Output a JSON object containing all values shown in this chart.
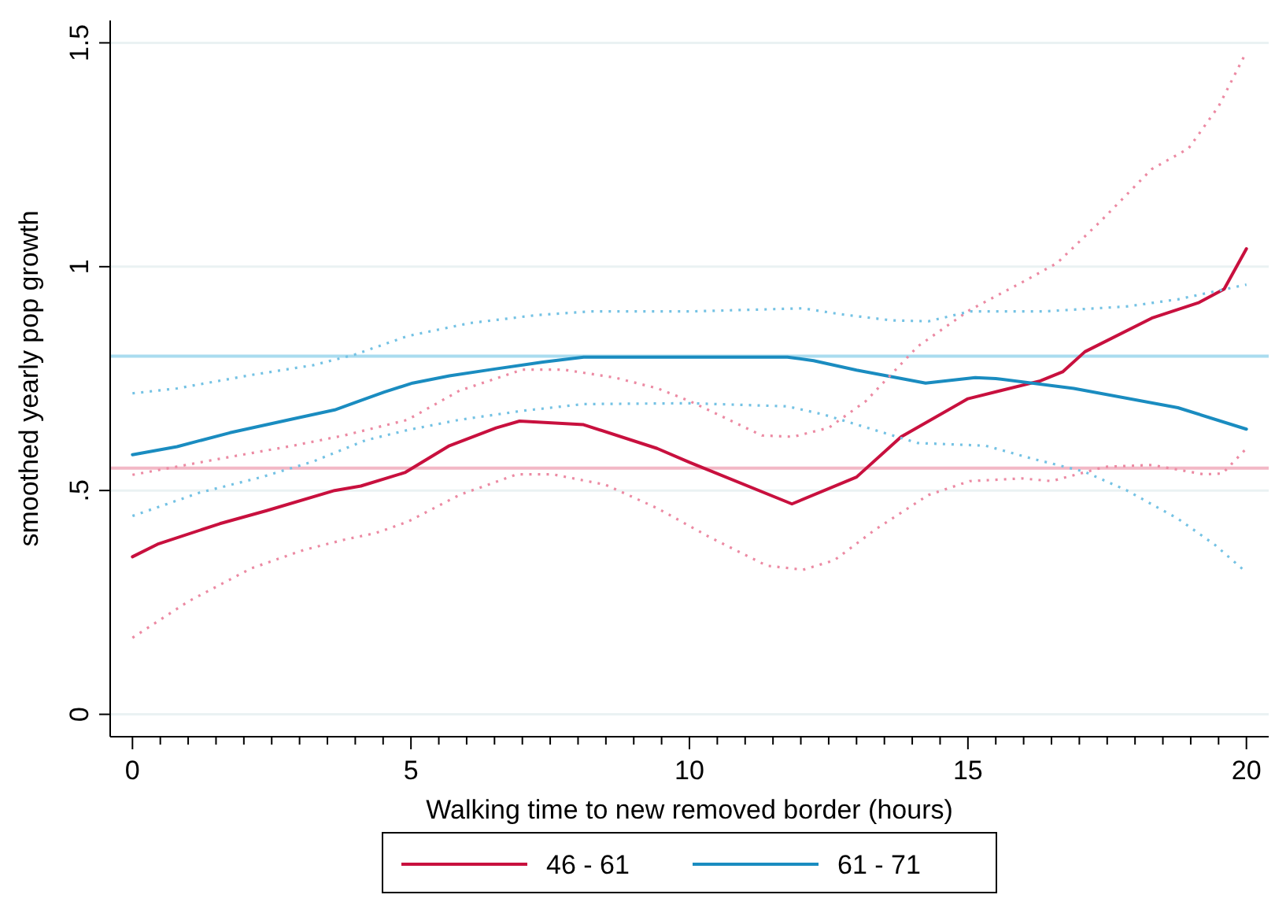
{
  "chart_data": {
    "type": "line",
    "xlabel": "Walking time to new removed border (hours)",
    "ylabel": "smoothed yearly pop growth",
    "xlim": [
      -0.4,
      20.4
    ],
    "ylim": [
      -0.05,
      1.55
    ],
    "xticks": [
      0,
      {
        "value": 0.5,
        "label": null
      },
      {
        "value": 1,
        "label": null
      },
      {
        "value": 1.5,
        "label": null
      },
      {
        "value": 2,
        "label": null
      },
      {
        "value": 2.5,
        "label": null
      },
      {
        "value": 3,
        "label": null
      },
      {
        "value": 3.5,
        "label": null
      },
      {
        "value": 4,
        "label": null
      },
      {
        "value": 4.5,
        "label": null
      },
      5,
      {
        "value": 5.5,
        "label": null
      },
      {
        "value": 6,
        "label": null
      },
      {
        "value": 6.5,
        "label": null
      },
      {
        "value": 7,
        "label": null
      },
      {
        "value": 7.5,
        "label": null
      },
      {
        "value": 8,
        "label": null
      },
      {
        "value": 8.5,
        "label": null
      },
      {
        "value": 9,
        "label": null
      },
      {
        "value": 9.5,
        "label": null
      },
      10,
      {
        "value": 10.5,
        "label": null
      },
      {
        "value": 11,
        "label": null
      },
      {
        "value": 11.5,
        "label": null
      },
      {
        "value": 12,
        "label": null
      },
      {
        "value": 12.5,
        "label": null
      },
      {
        "value": 13,
        "label": null
      },
      {
        "value": 13.5,
        "label": null
      },
      {
        "value": 14,
        "label": null
      },
      {
        "value": 14.5,
        "label": null
      },
      15,
      {
        "value": 15.5,
        "label": null
      },
      {
        "value": 16,
        "label": null
      },
      {
        "value": 16.5,
        "label": null
      },
      {
        "value": 17,
        "label": null
      },
      {
        "value": 17.5,
        "label": null
      },
      {
        "value": 18,
        "label": null
      },
      {
        "value": 18.5,
        "label": null
      },
      {
        "value": 19,
        "label": null
      },
      {
        "value": 19.5,
        "label": null
      },
      20
    ],
    "yticks": [
      0,
      {
        "value": 0.5,
        "label": ".5"
      },
      1,
      1.5
    ],
    "grid": "y",
    "legend": "bottom",
    "ref_lines": [
      {
        "axis": "y",
        "value": 0.8,
        "color": "#a9dcef"
      },
      {
        "axis": "y",
        "value": 0.55,
        "color": "#f2b8c6"
      }
    ],
    "series": [
      {
        "name": "46 - 61",
        "color": "#c8103e",
        "line_style": "solid",
        "x": [
          0,
          0.45,
          1.57,
          2.41,
          3.63,
          4.1,
          4.89,
          5.69,
          6.53,
          6.95,
          8.1,
          9.42,
          10,
          11.84,
          13,
          13.8,
          15,
          16.3,
          16.7,
          17.1,
          18.3,
          19.15,
          19.6,
          20
        ],
        "values": [
          0.352,
          0.38,
          0.426,
          0.455,
          0.5,
          0.51,
          0.54,
          0.6,
          0.64,
          0.655,
          0.647,
          0.594,
          0.563,
          0.47,
          0.53,
          0.62,
          0.705,
          0.745,
          0.765,
          0.81,
          0.885,
          0.92,
          0.95,
          1.04
        ]
      },
      {
        "name": "61 - 71",
        "color": "#1a8cc0",
        "line_style": "solid",
        "x": [
          0,
          0.8,
          1.75,
          2.88,
          3.63,
          4.52,
          5.03,
          5.69,
          6.43,
          7.37,
          8.1,
          10,
          11.76,
          12.23,
          13,
          14.24,
          15.13,
          15.5,
          16.9,
          18.77,
          20
        ],
        "values": [
          0.58,
          0.598,
          0.629,
          0.66,
          0.68,
          0.72,
          0.74,
          0.756,
          0.77,
          0.787,
          0.798,
          0.798,
          0.798,
          0.79,
          0.769,
          0.74,
          0.752,
          0.75,
          0.728,
          0.685,
          0.637
        ]
      },
      {
        "color": "#ec8aa3",
        "line_style": "dotted",
        "x": [
          0,
          1.57,
          2.88,
          3.8,
          4.94,
          5.87,
          7,
          7.74,
          8.67,
          9.43,
          10,
          11.3,
          11.86,
          12.5,
          13.17,
          14.1,
          15.03,
          16,
          16.6,
          17.37,
          18.3,
          18.96,
          19.5,
          20
        ],
        "values": [
          0.535,
          0.571,
          0.6,
          0.623,
          0.658,
          0.723,
          0.77,
          0.77,
          0.752,
          0.728,
          0.7,
          0.623,
          0.62,
          0.64,
          0.7,
          0.822,
          0.903,
          0.967,
          1.008,
          1.1,
          1.218,
          1.264,
          1.358,
          1.48
        ]
      },
      {
        "color": "#ec8aa3",
        "line_style": "dotted",
        "x": [
          0,
          1,
          2.13,
          3.07,
          3.8,
          4.37,
          4.94,
          5.87,
          6.9,
          7.55,
          8.49,
          9.43,
          10.36,
          11.39,
          12.04,
          12.6,
          13.35,
          14.29,
          15.03,
          15.97,
          16.5,
          17.47,
          18.3,
          19.24,
          19.57,
          20
        ],
        "values": [
          0.171,
          0.252,
          0.326,
          0.367,
          0.39,
          0.405,
          0.43,
          0.49,
          0.536,
          0.536,
          0.513,
          0.46,
          0.396,
          0.332,
          0.323,
          0.344,
          0.414,
          0.49,
          0.521,
          0.527,
          0.521,
          0.553,
          0.557,
          0.536,
          0.538,
          0.594
        ]
      },
      {
        "color": "#74c2e4",
        "line_style": "dotted",
        "x": [
          0,
          0.8,
          2.13,
          3.25,
          4,
          4.94,
          6.06,
          7.27,
          8.21,
          10,
          12.04,
          12.7,
          13.63,
          14.29,
          15.03,
          16.35,
          17.84,
          18.77,
          20
        ],
        "values": [
          0.717,
          0.728,
          0.758,
          0.78,
          0.804,
          0.845,
          0.874,
          0.892,
          0.9,
          0.9,
          0.907,
          0.894,
          0.88,
          0.878,
          0.9,
          0.9,
          0.911,
          0.927,
          0.96
        ]
      },
      {
        "color": "#74c2e4",
        "line_style": "dotted",
        "x": [
          0,
          1.2,
          2.32,
          3.25,
          4.18,
          4.94,
          5.87,
          7,
          8.1,
          10,
          11.76,
          12.4,
          13.17,
          14.1,
          15.32,
          16.16,
          17.09,
          17.84,
          18.77,
          19.43,
          20
        ],
        "values": [
          0.443,
          0.495,
          0.53,
          0.565,
          0.612,
          0.635,
          0.658,
          0.678,
          0.693,
          0.695,
          0.688,
          0.67,
          0.641,
          0.606,
          0.6,
          0.571,
          0.542,
          0.501,
          0.437,
          0.379,
          0.317
        ]
      }
    ]
  }
}
